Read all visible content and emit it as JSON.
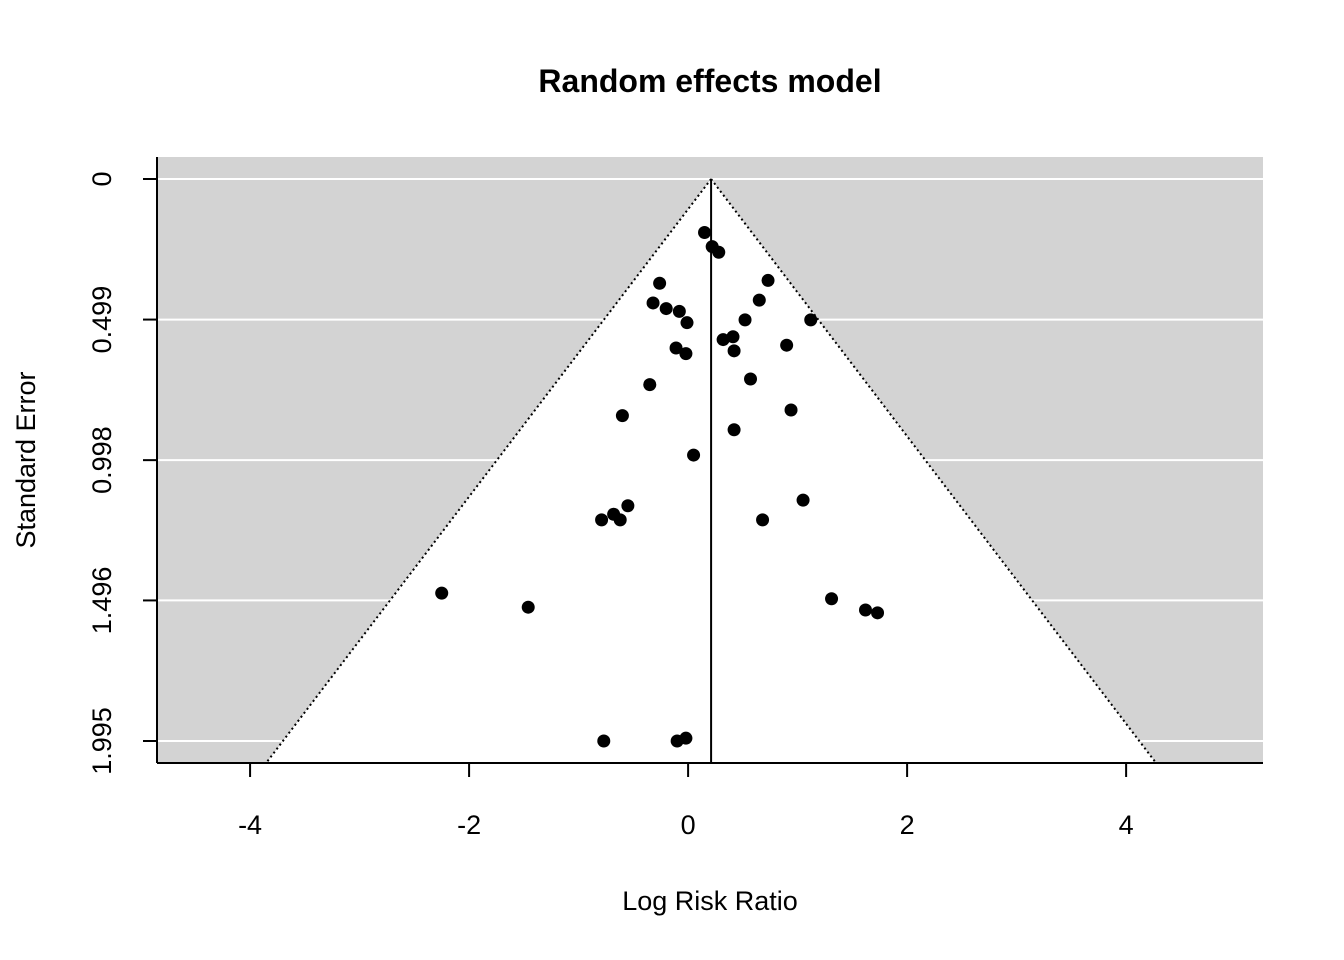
{
  "chart_data": {
    "type": "scatter",
    "title": "Random effects model",
    "xlabel": "Log Risk Ratio",
    "ylabel": "Standard Error",
    "xlim": [
      -4.85,
      5.25
    ],
    "ylim": [
      1.995,
      0
    ],
    "y_reversed": true,
    "x_ticks": [
      -4,
      -2,
      0,
      2,
      4
    ],
    "x_tick_labels": [
      "-4",
      "-2",
      "0",
      "2",
      "4"
    ],
    "y_ticks": [
      0,
      0.499,
      0.998,
      1.496,
      1.995
    ],
    "y_tick_labels": [
      "0",
      "0.499",
      "0.998",
      "1.496",
      "1.995"
    ],
    "horizontal_grid": true,
    "background_color": "#d3d3d3",
    "funnel_color": "#ffffff",
    "point_color": "#000000",
    "summary_estimate": 0.21,
    "funnel_z": 1.96,
    "points": [
      {
        "x": 0.15,
        "y": 0.19
      },
      {
        "x": 0.22,
        "y": 0.24
      },
      {
        "x": 0.28,
        "y": 0.26
      },
      {
        "x": -0.26,
        "y": 0.37
      },
      {
        "x": 0.73,
        "y": 0.36
      },
      {
        "x": -0.32,
        "y": 0.44
      },
      {
        "x": -0.2,
        "y": 0.46
      },
      {
        "x": -0.08,
        "y": 0.47
      },
      {
        "x": 0.65,
        "y": 0.43
      },
      {
        "x": 0.52,
        "y": 0.5
      },
      {
        "x": 1.12,
        "y": 0.5
      },
      {
        "x": -0.01,
        "y": 0.51
      },
      {
        "x": 0.32,
        "y": 0.57
      },
      {
        "x": 0.41,
        "y": 0.56
      },
      {
        "x": -0.11,
        "y": 0.6
      },
      {
        "x": -0.02,
        "y": 0.62
      },
      {
        "x": 0.42,
        "y": 0.61
      },
      {
        "x": 0.9,
        "y": 0.59
      },
      {
        "x": 0.57,
        "y": 0.71
      },
      {
        "x": -0.35,
        "y": 0.73
      },
      {
        "x": 0.94,
        "y": 0.82
      },
      {
        "x": -0.6,
        "y": 0.84
      },
      {
        "x": 0.42,
        "y": 0.89
      },
      {
        "x": 0.05,
        "y": 0.98
      },
      {
        "x": 1.05,
        "y": 1.14
      },
      {
        "x": -0.55,
        "y": 1.16
      },
      {
        "x": -0.68,
        "y": 1.19
      },
      {
        "x": -0.79,
        "y": 1.21
      },
      {
        "x": -0.62,
        "y": 1.21
      },
      {
        "x": 0.68,
        "y": 1.21
      },
      {
        "x": -2.25,
        "y": 1.47
      },
      {
        "x": -1.46,
        "y": 1.52
      },
      {
        "x": 1.31,
        "y": 1.49
      },
      {
        "x": 1.62,
        "y": 1.53
      },
      {
        "x": 1.73,
        "y": 1.54
      },
      {
        "x": -0.77,
        "y": 1.995
      },
      {
        "x": -0.1,
        "y": 1.995
      },
      {
        "x": -0.02,
        "y": 1.985
      }
    ]
  }
}
